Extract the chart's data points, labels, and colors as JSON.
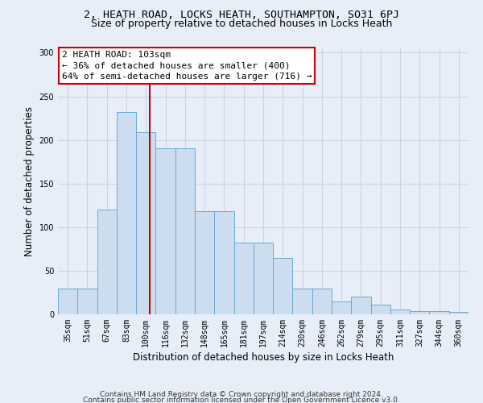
{
  "title": "2, HEATH ROAD, LOCKS HEATH, SOUTHAMPTON, SO31 6PJ",
  "subtitle": "Size of property relative to detached houses in Locks Heath",
  "xlabel": "Distribution of detached houses by size in Locks Heath",
  "ylabel": "Number of detached properties",
  "footnote1": "Contains HM Land Registry data © Crown copyright and database right 2024.",
  "footnote2": "Contains public sector information licensed under the Open Government Licence v3.0.",
  "bar_color": "#ccddf0",
  "bar_edge_color": "#6aaad4",
  "grid_color": "#c8d4e8",
  "background_color": "#e8eef8",
  "annotation_box_color": "#ffffff",
  "annotation_border_color": "#cc0000",
  "vline_color": "#cc0000",
  "categories": [
    "35sqm",
    "51sqm",
    "67sqm",
    "83sqm",
    "100sqm",
    "116sqm",
    "132sqm",
    "148sqm",
    "165sqm",
    "181sqm",
    "197sqm",
    "214sqm",
    "230sqm",
    "246sqm",
    "262sqm",
    "279sqm",
    "295sqm",
    "311sqm",
    "327sqm",
    "344sqm",
    "360sqm"
  ],
  "values": [
    30,
    30,
    120,
    232,
    209,
    190,
    190,
    118,
    118,
    82,
    82,
    65,
    30,
    30,
    15,
    20,
    11,
    6,
    4,
    4,
    3
  ],
  "ylim": [
    0,
    305
  ],
  "yticks": [
    0,
    50,
    100,
    150,
    200,
    250,
    300
  ],
  "property_label": "2 HEATH ROAD: 103sqm",
  "pct_smaller": "36% of detached houses are smaller (400)",
  "pct_larger": "64% of semi-detached houses are larger (716)",
  "vline_x": 4.19,
  "title_fontsize": 9.5,
  "subtitle_fontsize": 9,
  "tick_fontsize": 7,
  "ylabel_fontsize": 8.5,
  "xlabel_fontsize": 8.5,
  "annotation_fontsize": 8,
  "footnote_fontsize": 6.5
}
